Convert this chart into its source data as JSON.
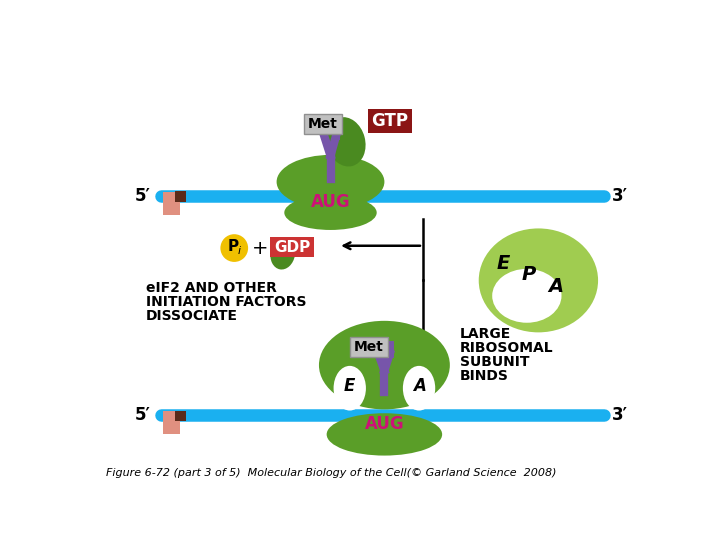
{
  "caption": "Figure 6-72 (part 3 of 5)  Molecular Biology of the Cell(© Garland Science  2008)",
  "bg_color": "#ffffff",
  "mrna_color": "#1ab0f0",
  "small_rib_color": "#5a9e28",
  "large_rib_color": "#a0cc50",
  "met_box_color": "#c0c0c0",
  "gtp_box_color": "#8b1515",
  "gdp_box_color": "#cc3333",
  "pi_color": "#f0c000",
  "trna_color": "#7755aa",
  "aug_color": "#cc1177",
  "text_color": "#000000",
  "label_5prime": "5′",
  "label_3prime": "3′",
  "cap_pink": "#e09080",
  "cap_brown": "#5a2a1a",
  "trna_green": "#4a8a20"
}
